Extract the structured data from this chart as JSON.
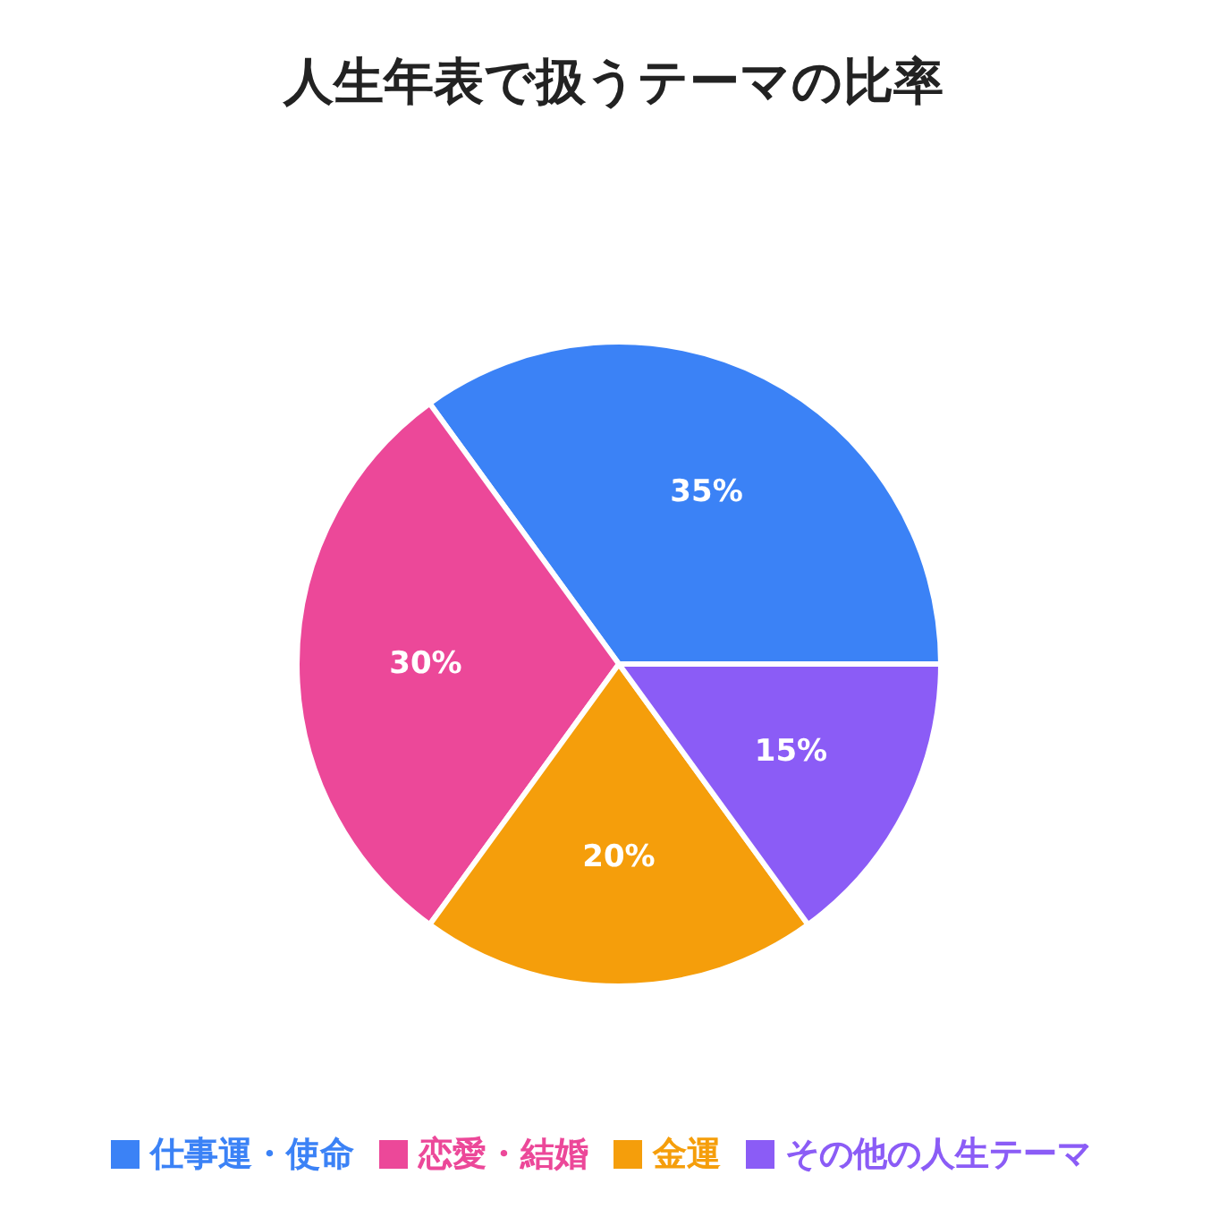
{
  "chart_data": {
    "type": "pie",
    "title": "人生年表で扱うテーマの比率",
    "categories": [
      "仕事運・使命",
      "恋愛・結婚",
      "金運",
      "その他の人生テーマ"
    ],
    "values": [
      35,
      30,
      20,
      15
    ],
    "colors": [
      "#3b82f6",
      "#ec4899",
      "#f59e0b",
      "#8b5cf6"
    ],
    "value_labels": [
      "35%",
      "30%",
      "20%",
      "15%"
    ],
    "legend": "bottom"
  }
}
